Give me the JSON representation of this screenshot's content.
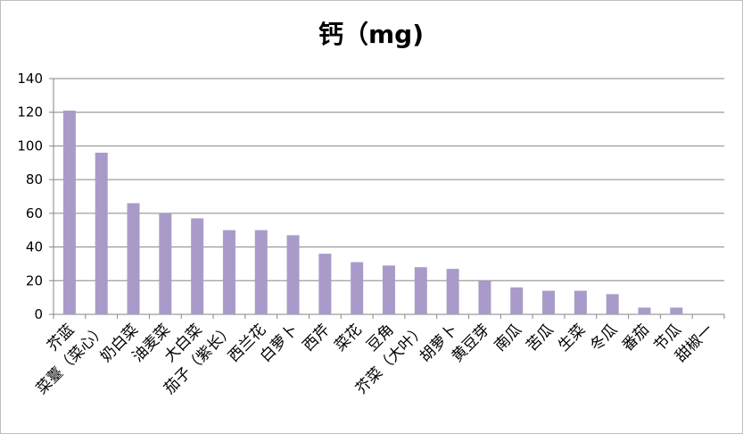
{
  "chart_data": {
    "type": "bar",
    "title": "钙（mg)",
    "categories": [
      "芥蓝",
      "菜薹（菜心）",
      "奶白菜",
      "油麦菜",
      "大白菜",
      "茄子（紫长）",
      "西兰花",
      "白萝卜",
      "西芹",
      "菜花",
      "豆角",
      "芥菜（大叶）",
      "胡萝卜",
      "黄豆芽",
      "南瓜",
      "苦瓜",
      "生菜",
      "冬瓜",
      "番茄",
      "节瓜",
      "甜椒一"
    ],
    "values": [
      121,
      96,
      66,
      60,
      57,
      50,
      50,
      47,
      36,
      31,
      29,
      28,
      27,
      20,
      16,
      14,
      14,
      12,
      4,
      4,
      0
    ],
    "color": "#a99bc9",
    "ylim": [
      0,
      140
    ],
    "yticks": [
      0,
      20,
      40,
      60,
      80,
      100,
      120,
      140
    ],
    "grid": true
  }
}
